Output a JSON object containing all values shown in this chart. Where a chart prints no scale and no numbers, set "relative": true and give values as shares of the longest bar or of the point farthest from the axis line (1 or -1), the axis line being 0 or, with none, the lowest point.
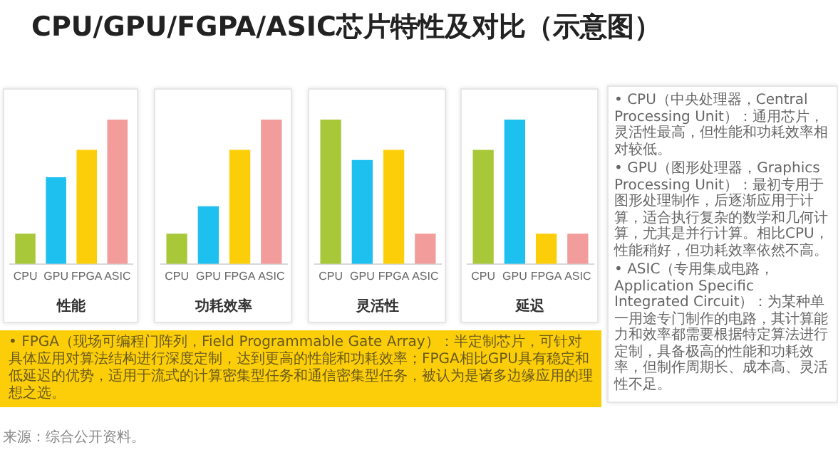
{
  "chart_data": [
    {
      "type": "other",
      "title": "CPU/GPU/FGPA/ASIC芯片特性及对比（示意图）"
    },
    {
      "type": "bar",
      "relative": true,
      "xlabel": "性能",
      "categories": [
        "CPU",
        "GPU",
        "FPGA",
        "ASIC"
      ],
      "values": [
        0.21,
        0.6,
        0.79,
        1
      ],
      "colors": [
        "#a8c83a",
        "#1ec0ef",
        "#fcce0a",
        "#f39c9c"
      ]
    },
    {
      "type": "bar",
      "relative": true,
      "xlabel": "功耗效率",
      "categories": [
        "CPU",
        "GPU",
        "FPGA",
        "ASIC"
      ],
      "values": [
        0.21,
        0.4,
        0.79,
        1
      ],
      "colors": [
        "#a8c83a",
        "#1ec0ef",
        "#fcce0a",
        "#f39c9c"
      ]
    },
    {
      "type": "bar",
      "relative": true,
      "xlabel": "灵活性",
      "categories": [
        "CPU",
        "GPU",
        "FPGA",
        "ASIC"
      ],
      "values": [
        1,
        0.72,
        0.79,
        0.21
      ],
      "colors": [
        "#a8c83a",
        "#1ec0ef",
        "#fcce0a",
        "#f39c9c"
      ]
    },
    {
      "type": "bar",
      "relative": true,
      "xlabel": "延迟",
      "categories": [
        "CPU",
        "GPU",
        "FPGA",
        "ASIC"
      ],
      "values": [
        0.79,
        1,
        0.21,
        0.21
      ],
      "colors": [
        "#a8c83a",
        "#1ec0ef",
        "#fcce0a",
        "#f39c9c"
      ]
    },
    {
      "type": "other",
      "annotations": [
        "• CPU（中央处理器，Central Processing Unit）：通用芯片，灵活性最高，但性能和功耗效率相对较低。",
        "• GPU（图形处理器，Graphics Processing Unit）：最初专用于图形处理制作，后逐渐应用于计算，适合执行复杂的数学和几何计算，尤其是并行计算。相比CPU，性能稍好，但功耗效率依然不高。",
        "• ASIC（专用集成电路，Application Specific Integrated Circuit）：为某种单一用途专门制作的电路，其计算能力和效率都需要根据特定算法进行定制，具备极高的性能和功耗效率，但制作周期长、成本高、灵活性不足。"
      ]
    },
    {
      "type": "other",
      "annotations": [
        "• FPGA（现场可编程门阵列，Field Programmable Gate Array）：半定制芯片，可针对具体应用对算法结构进行深度定制，达到更高的性能和功耗效率；FPGA相比GPU具有稳定和低延迟的优势，适用于流式的计算密集型任务和通信密集型任务，被认为是诸多边缘应用的理想之选。"
      ]
    },
    {
      "type": "other",
      "annotations": [
        "来源：综合公开资料。"
      ]
    }
  ]
}
